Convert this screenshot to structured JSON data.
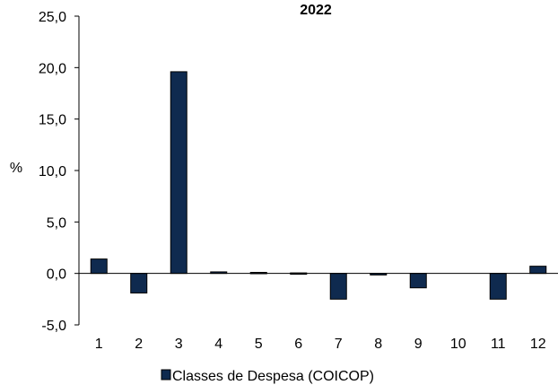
{
  "chart_data": {
    "type": "bar",
    "title": "2022",
    "ylabel": "%",
    "xlabel": "",
    "categories": [
      "1",
      "2",
      "3",
      "4",
      "5",
      "6",
      "7",
      "8",
      "9",
      "10",
      "11",
      "12"
    ],
    "series": [
      {
        "name": "Classes de Despesa (COICOP)",
        "color": "#0f2a4f",
        "values": [
          1.4,
          -1.9,
          19.6,
          0.15,
          0.1,
          0.05,
          -2.5,
          -0.15,
          -1.4,
          0.0,
          -2.5,
          0.7
        ]
      }
    ],
    "ylim": [
      -5.0,
      25.0
    ],
    "yticks": [
      "-5,0",
      "0,0",
      "5,0",
      "10,0",
      "15,0",
      "20,0",
      "25,0"
    ],
    "ytick_values": [
      -5,
      0,
      5,
      10,
      15,
      20,
      25
    ],
    "grid": false,
    "legend_position": "bottom-center"
  }
}
